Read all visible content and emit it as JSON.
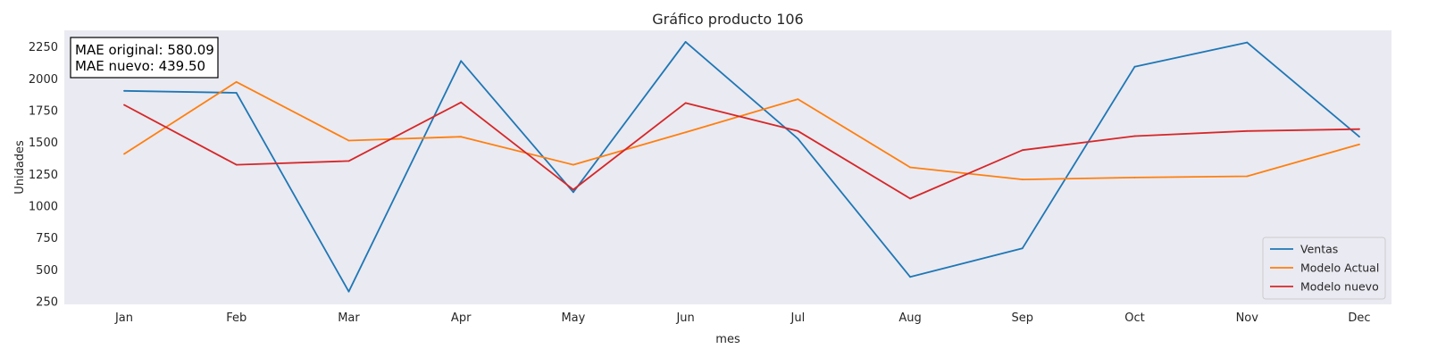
{
  "chart_data": {
    "type": "line",
    "title": "Gráfico producto 106",
    "xlabel": "mes",
    "ylabel": "Unidades",
    "categories": [
      "Jan",
      "Feb",
      "Mar",
      "Apr",
      "May",
      "Jun",
      "Jul",
      "Aug",
      "Sep",
      "Oct",
      "Nov",
      "Dec"
    ],
    "ylim": [
      230,
      2380
    ],
    "yticks": [
      250,
      500,
      750,
      1000,
      1250,
      1500,
      1750,
      2000,
      2250
    ],
    "grid": false,
    "legend_position": "bottom-right",
    "series": [
      {
        "name": "Ventas",
        "color": "#1f77b4",
        "values": [
          1905,
          1890,
          330,
          2140,
          1110,
          2290,
          1530,
          445,
          670,
          2095,
          2285,
          1545
        ]
      },
      {
        "name": "Modelo Actual",
        "color": "#ff7f0e",
        "values": [
          1410,
          1975,
          1515,
          1545,
          1325,
          1580,
          1840,
          1305,
          1210,
          1225,
          1235,
          1485
        ]
      },
      {
        "name": "Modelo nuevo",
        "color": "#d62728",
        "values": [
          1795,
          1325,
          1355,
          1815,
          1130,
          1810,
          1590,
          1060,
          1440,
          1550,
          1590,
          1605
        ]
      }
    ],
    "annotation": {
      "lines": [
        "MAE original: 580.09",
        "MAE nuevo: 439.50"
      ]
    }
  },
  "style": {
    "plot_background": "#eaeaf2"
  }
}
